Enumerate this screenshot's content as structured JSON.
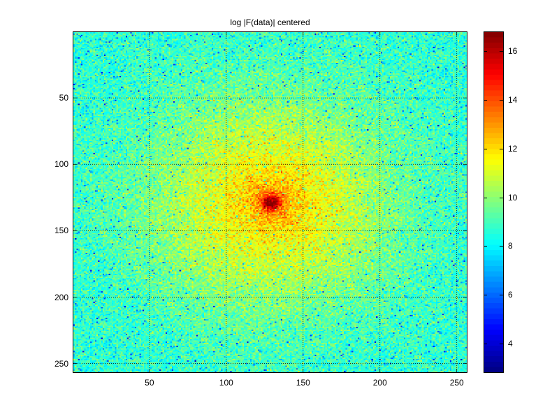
{
  "chart_data": {
    "type": "heatmap",
    "title": "log |F(data)| centered",
    "xlabel": "",
    "ylabel": "",
    "xlim": [
      0.5,
      256.5
    ],
    "ylim": [
      0.5,
      256.5
    ],
    "y_direction": "reversed",
    "x_ticks": [
      50,
      100,
      150,
      200,
      250
    ],
    "y_ticks": [
      50,
      100,
      150,
      200,
      250
    ],
    "grid": true,
    "colormap": "jet",
    "clim": [
      2.8,
      16.8
    ],
    "peak_location": [
      129,
      129
    ],
    "colorbar": {
      "position": "right",
      "ticks": [
        4,
        6,
        8,
        10,
        12,
        14,
        16
      ]
    }
  }
}
